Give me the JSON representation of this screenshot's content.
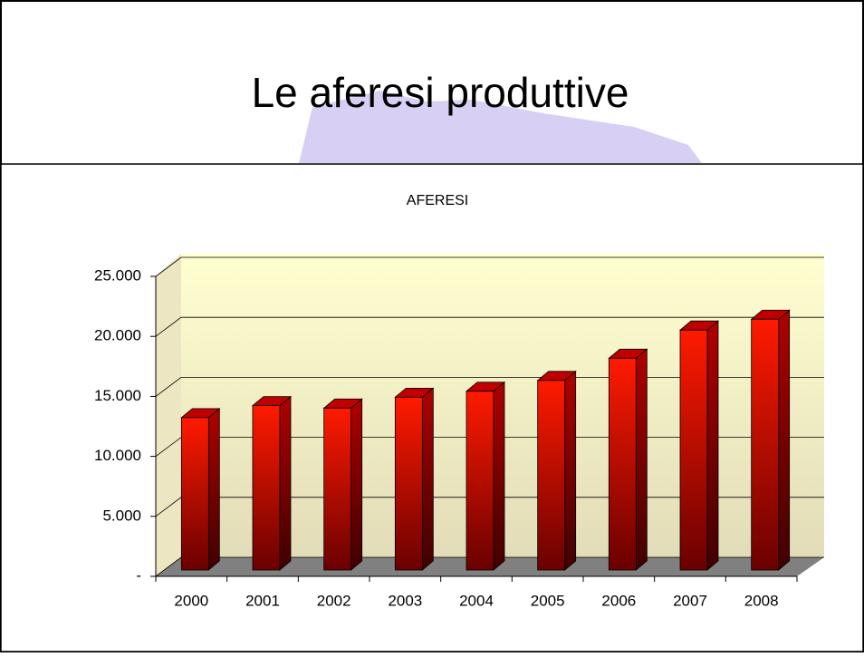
{
  "page_title": "Le aferesi produttive",
  "chart_data": {
    "type": "bar",
    "title": "AFERESI",
    "categories": [
      "2000",
      "2001",
      "2002",
      "2003",
      "2004",
      "2005",
      "2006",
      "2007",
      "2008"
    ],
    "values": [
      12700,
      13700,
      13500,
      14400,
      14900,
      15800,
      17650,
      20000,
      20900
    ],
    "color": "#ff0000",
    "ylim": [
      0,
      25000
    ],
    "yticks": [
      {
        "value": 0,
        "label": "-"
      },
      {
        "value": 5000,
        "label": "5.000"
      },
      {
        "value": 10000,
        "label": "10.000"
      },
      {
        "value": 15000,
        "label": "15.000"
      },
      {
        "value": 20000,
        "label": "20.000"
      },
      {
        "value": 25000,
        "label": "25.000"
      }
    ],
    "grid": true
  }
}
